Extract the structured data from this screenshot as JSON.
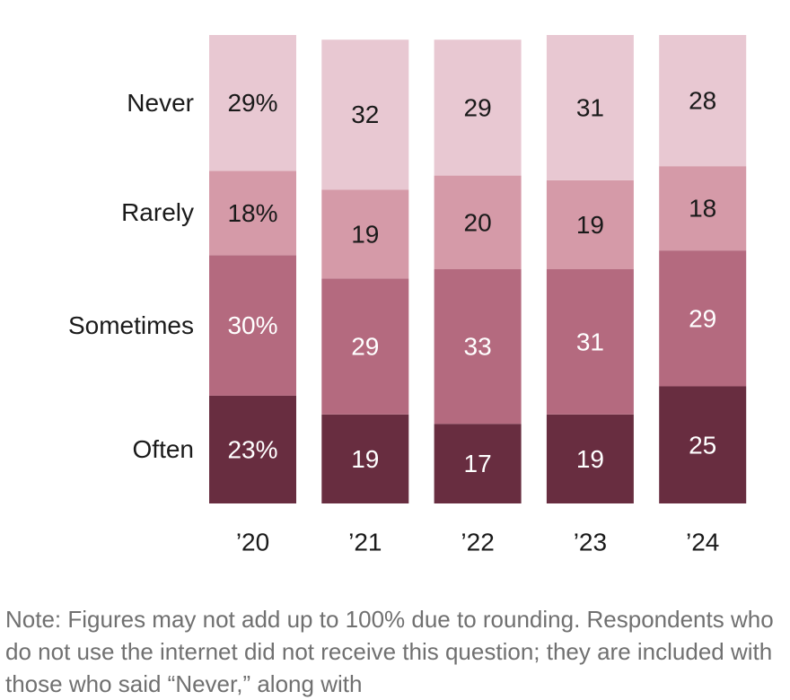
{
  "chart_data": {
    "type": "bar",
    "stacked": true,
    "normalized": true,
    "categories": [
      "’20",
      "’21",
      "’22",
      "’23",
      "’24"
    ],
    "series": [
      {
        "name": "Often",
        "values": [
          23,
          19,
          17,
          19,
          25
        ],
        "color": "#682d40",
        "labels": [
          "23%",
          "19",
          "17",
          "19",
          "25"
        ],
        "label_color": "#ffffff"
      },
      {
        "name": "Sometimes",
        "values": [
          30,
          29,
          33,
          31,
          29
        ],
        "color": "#b46a7f",
        "labels": [
          "30%",
          "29",
          "33",
          "31",
          "29"
        ],
        "label_color": "#ffffff"
      },
      {
        "name": "Rarely",
        "values": [
          18,
          19,
          20,
          19,
          18
        ],
        "color": "#d59aa8",
        "labels": [
          "18%",
          "19",
          "20",
          "19",
          "18"
        ],
        "label_color": "#1a1a1a"
      },
      {
        "name": "Never",
        "values": [
          29,
          32,
          29,
          31,
          28
        ],
        "color": "#e8c8d2",
        "labels": [
          "29%",
          "32",
          "29",
          "31",
          "28"
        ],
        "label_color": "#1a1a1a"
      }
    ],
    "legend": "left, inline with first bar",
    "grid": false
  },
  "note": "Note: Figures may not add up to 100% due to rounding. Respondents who do not use the internet did not receive this question; they are included with those who said “Never,” along with"
}
